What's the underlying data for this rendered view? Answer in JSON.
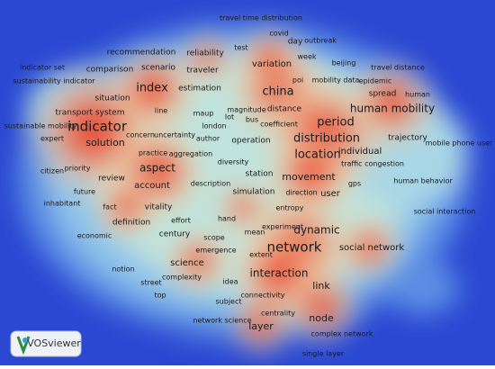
{
  "terms": [
    "travel time distribution",
    "covid",
    "test",
    "day",
    "outbreak",
    "reliability",
    "week",
    "recommendation",
    "beijing",
    "travel distance",
    "indicator set",
    "comparison",
    "scenario",
    "traveler",
    "variation",
    "sustainability indicator",
    "poi",
    "mobility data",
    "epidemic",
    "index",
    "estimation",
    "china",
    "spread",
    "human",
    "situation",
    "magnitude",
    "distance",
    "human mobility",
    "transport system",
    "line",
    "maup",
    "lot",
    "bus",
    "period",
    "london",
    "sustainable mobility",
    "indicator",
    "coefficient",
    "expert",
    "concern",
    "uncertainty",
    "author",
    "operation",
    "distribution",
    "trajectory",
    "solution",
    "location",
    "individual",
    "mobile phone user",
    "practice",
    "aggregation",
    "priority",
    "citizen",
    "aspect",
    "diversity",
    "traffic congestion",
    "review",
    "station",
    "movement",
    "description",
    "account",
    "gps",
    "human behavior",
    "future",
    "simulation",
    "direction",
    "user",
    "inhabitant",
    "fact",
    "vitality",
    "entropy",
    "social interaction",
    "hand",
    "definition",
    "effort",
    "experiment",
    "dynamic",
    "century",
    "mean",
    "economic",
    "scope",
    "network",
    "emergence",
    "extent",
    "social network",
    "science",
    "notion",
    "interaction",
    "complexity",
    "street",
    "idea",
    "link",
    "top",
    "connectivity",
    "subject",
    "centrality",
    "network science",
    "node",
    "layer",
    "complex network",
    "single layer"
  ],
  "logo": "VOSviewer"
}
